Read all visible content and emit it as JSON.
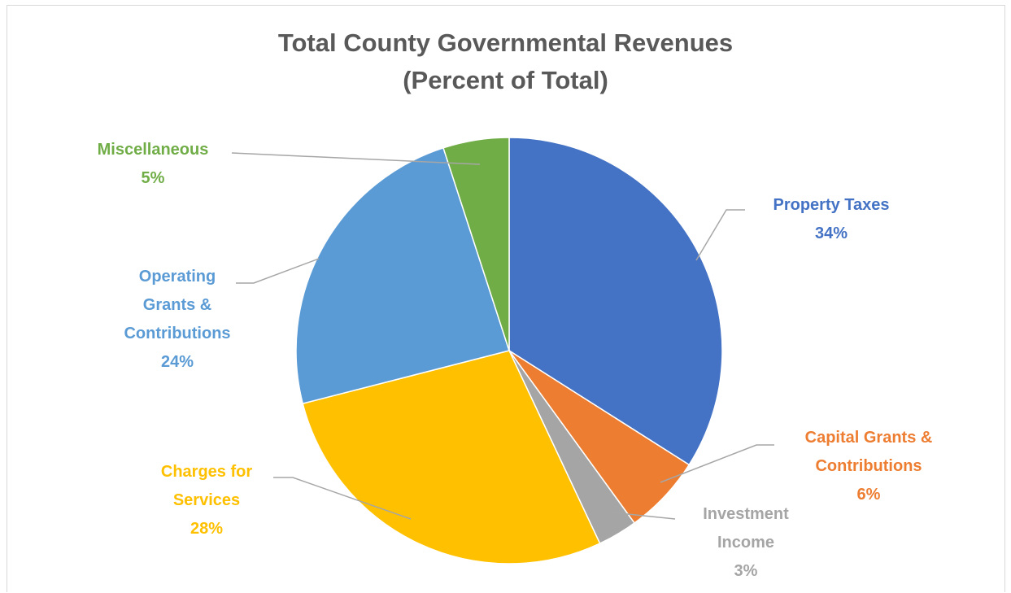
{
  "chart_data": {
    "type": "pie",
    "title_line1": "Total County Governmental Revenues",
    "title_line2": "(Percent of Total)",
    "slices": [
      {
        "label_lines": [
          "Property Taxes"
        ],
        "pct_text": "34%",
        "value": 34,
        "color": "#4472c4",
        "text_color": "#4472c4"
      },
      {
        "label_lines": [
          "Capital Grants &",
          "Contributions"
        ],
        "pct_text": "6%",
        "value": 6,
        "color": "#ed7d31",
        "text_color": "#ed7d31"
      },
      {
        "label_lines": [
          "Investment",
          "Income"
        ],
        "pct_text": "3%",
        "value": 3,
        "color": "#a5a5a5",
        "text_color": "#a5a5a5"
      },
      {
        "label_lines": [
          "Charges for",
          "Services"
        ],
        "pct_text": "28%",
        "value": 28,
        "color": "#ffc000",
        "text_color": "#ffc000"
      },
      {
        "label_lines": [
          "Operating",
          "Grants &",
          "Contributions"
        ],
        "pct_text": "24%",
        "value": 24,
        "color": "#5b9bd5",
        "text_color": "#5b9bd5"
      },
      {
        "label_lines": [
          "Miscellaneous"
        ],
        "pct_text": "5%",
        "value": 5,
        "color": "#70ad47",
        "text_color": "#70ad47"
      }
    ],
    "legend": "none",
    "leader_line_color": "#a6a6a6"
  }
}
